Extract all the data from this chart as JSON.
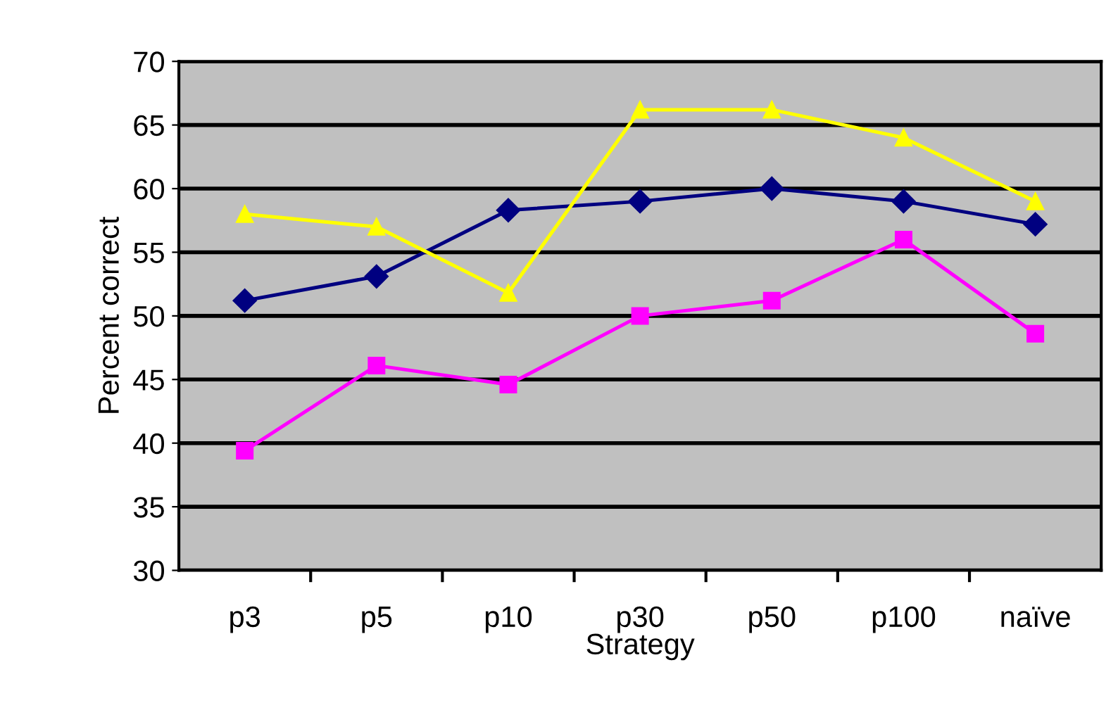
{
  "chart_data": {
    "type": "line",
    "xlabel": "Strategy",
    "ylabel": "Percent correct",
    "categories": [
      "p3",
      "p5",
      "p10",
      "p30",
      "p50",
      "p100",
      "naïve"
    ],
    "series": [
      {
        "color": "#000080",
        "marker": "diamond",
        "values": [
          51.2,
          53.1,
          58.3,
          59,
          60,
          59,
          57.2
        ]
      },
      {
        "color": "#ff00ff",
        "marker": "square",
        "values": [
          39.4,
          46.1,
          44.6,
          50,
          51.2,
          56,
          48.6
        ]
      },
      {
        "color": "#ffff00",
        "marker": "triangle",
        "values": [
          58,
          57,
          51.8,
          66.2,
          66.2,
          64,
          59
        ]
      }
    ],
    "ylim": [
      30,
      70
    ],
    "yticks": [
      30,
      35,
      40,
      45,
      50,
      55,
      60,
      65,
      70
    ],
    "grid": "y",
    "legend": false
  }
}
